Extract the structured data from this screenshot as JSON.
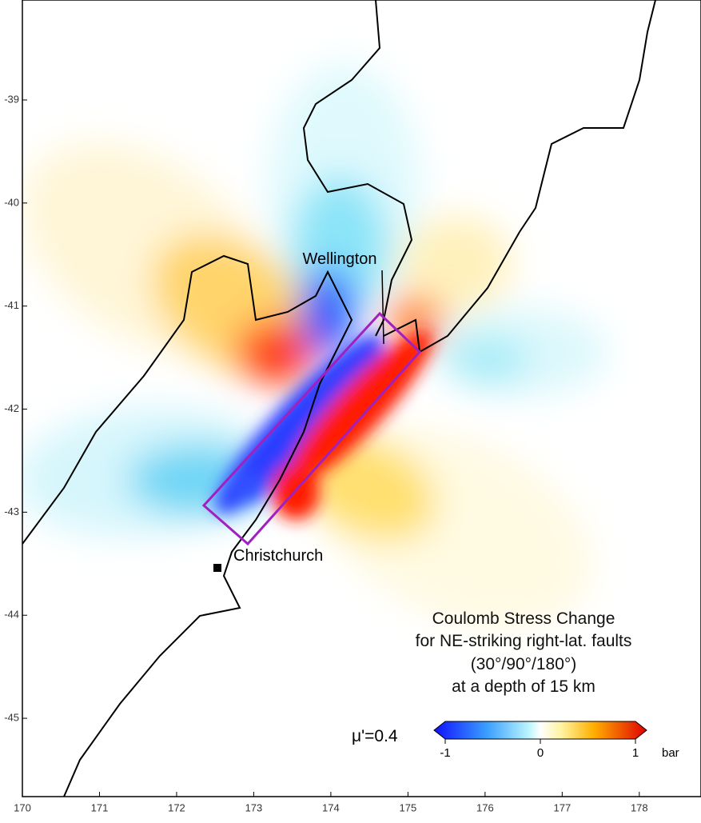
{
  "map": {
    "xlim": [
      170,
      178.8
    ],
    "ylim": [
      -45.76,
      -38.03
    ],
    "xticks": [
      170,
      171,
      172,
      173,
      174,
      175,
      176,
      177,
      178
    ],
    "yticks": [
      -39,
      -40,
      -41,
      -42,
      -43,
      -44,
      -45
    ],
    "places": [
      "Wellington",
      "Christchurch"
    ],
    "caption": [
      "Coulomb Stress Change",
      "for NE-striking right-lat. faults",
      "(30°/90°/180°)",
      "at a depth of 15 km"
    ],
    "friction": "μ'=0.4",
    "colorbar": {
      "lim": [
        -1,
        1
      ],
      "ticks": [
        -1,
        0,
        1
      ],
      "unit": "bar"
    }
  }
}
